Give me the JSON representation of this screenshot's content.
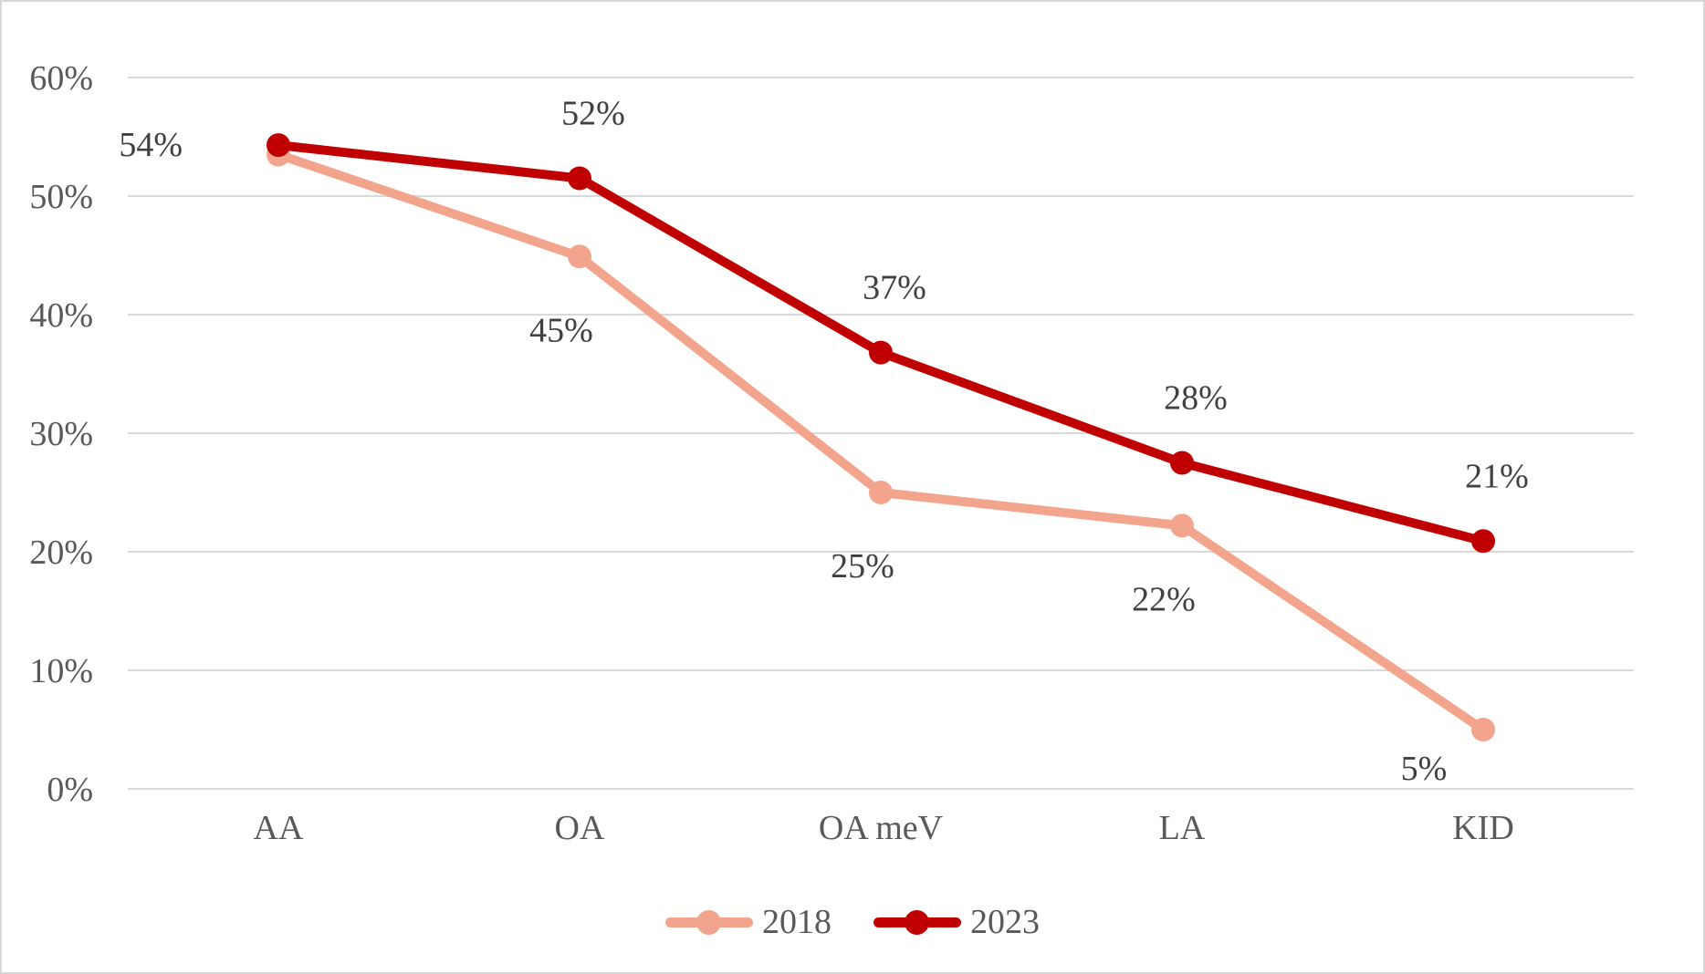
{
  "chart_data": {
    "type": "line",
    "title": "",
    "categories": [
      "AA",
      "OA",
      "OA meV",
      "LA",
      "KID"
    ],
    "series": [
      {
        "name": "2018",
        "color": "#F2A58C",
        "values": [
          54,
          45,
          25,
          22,
          5
        ],
        "plot_values": [
          53.5,
          44.9,
          25.0,
          22.2,
          5.0
        ],
        "labels": [
          "",
          "45%",
          "25%",
          "22%",
          "5%"
        ],
        "label_placements": [
          "none",
          "below",
          "below",
          "below",
          "below-left"
        ]
      },
      {
        "name": "2023",
        "color": "#C00000",
        "values": [
          54,
          52,
          37,
          28,
          21
        ],
        "plot_values": [
          54.3,
          51.5,
          36.8,
          27.5,
          20.9
        ],
        "labels": [
          "54%",
          "52%",
          "37%",
          "28%",
          "21%"
        ],
        "label_placements": [
          "left",
          "above",
          "above",
          "above",
          "above"
        ]
      }
    ],
    "xlabel": "",
    "ylabel": "",
    "ylim": [
      0,
      60
    ],
    "ytick_step": 10,
    "yticks": [
      "0%",
      "10%",
      "20%",
      "30%",
      "40%",
      "50%",
      "60%"
    ],
    "grid": true,
    "gridline_color": "#D9D9D9",
    "legend_position": "bottom-center",
    "text_colors": {
      "axis": "#595959",
      "data_labels": "#404040"
    }
  }
}
